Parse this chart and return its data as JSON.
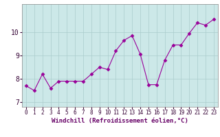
{
  "x": [
    0,
    1,
    2,
    3,
    4,
    5,
    6,
    7,
    8,
    9,
    10,
    11,
    12,
    13,
    14,
    15,
    16,
    17,
    18,
    19,
    20,
    21,
    22,
    23
  ],
  "y": [
    7.7,
    7.5,
    8.2,
    7.6,
    7.9,
    7.9,
    7.9,
    7.9,
    8.2,
    8.5,
    8.4,
    9.2,
    9.65,
    9.85,
    9.05,
    7.75,
    7.75,
    8.8,
    9.45,
    9.45,
    9.95,
    10.4,
    10.3,
    10.55
  ],
  "line_color": "#990099",
  "marker": "D",
  "marker_size": 2.5,
  "bg_color": "#cce8e8",
  "grid_color": "#aacccc",
  "xlabel": "Windchill (Refroidissement éolien,°C)",
  "xlabel_fontsize": 6.5,
  "xlabel_color": "#660066",
  "tick_color": "#330033",
  "tick_fontsize": 5.5,
  "ylim": [
    6.8,
    11.2
  ],
  "xlim": [
    -0.5,
    23.5
  ],
  "yticks": [
    7,
    8,
    9,
    10
  ],
  "xticks": [
    0,
    1,
    2,
    3,
    4,
    5,
    6,
    7,
    8,
    9,
    10,
    11,
    12,
    13,
    14,
    15,
    16,
    17,
    18,
    19,
    20,
    21,
    22,
    23
  ],
  "fig_bg_color": "#ffffff"
}
